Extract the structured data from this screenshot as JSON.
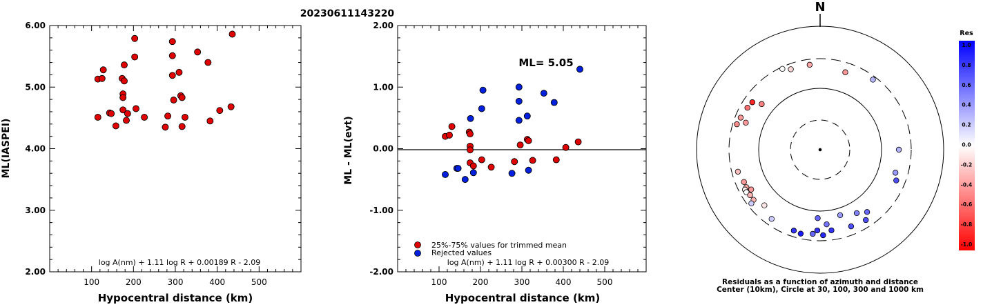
{
  "title": "20230611143220",
  "chart_data": [
    {
      "type": "scatter",
      "ylabel": "ML(IASPEI)",
      "xlabel": "Hypocentral distance (km)",
      "xlim": [
        0,
        600
      ],
      "ylim": [
        2.0,
        6.0
      ],
      "x_ticks": [
        "100",
        "200",
        "300",
        "400",
        "500"
      ],
      "y_ticks": [
        "2.00",
        "3.00",
        "4.00",
        "5.00",
        "6.00"
      ],
      "formula": "log A(nm) + 1.11 log R + 0.00189 R - 2.09",
      "marker_color": "#e00000",
      "points": [
        [
          115,
          5.13
        ],
        [
          125,
          5.14
        ],
        [
          128,
          5.28
        ],
        [
          115,
          4.51
        ],
        [
          143,
          4.58
        ],
        [
          147,
          4.57
        ],
        [
          158,
          4.37
        ],
        [
          173,
          5.14
        ],
        [
          175,
          4.89
        ],
        [
          175,
          4.83
        ],
        [
          175,
          4.63
        ],
        [
          178,
          5.1
        ],
        [
          178,
          5.36
        ],
        [
          183,
          4.46
        ],
        [
          186,
          4.57
        ],
        [
          203,
          5.79
        ],
        [
          203,
          5.49
        ],
        [
          206,
          4.65
        ],
        [
          226,
          4.51
        ],
        [
          276,
          4.35
        ],
        [
          282,
          4.53
        ],
        [
          293,
          5.74
        ],
        [
          293,
          5.51
        ],
        [
          293,
          5.19
        ],
        [
          296,
          4.79
        ],
        [
          309,
          5.24
        ],
        [
          313,
          4.86
        ],
        [
          316,
          4.83
        ],
        [
          316,
          4.36
        ],
        [
          323,
          4.51
        ],
        [
          353,
          5.57
        ],
        [
          378,
          5.4
        ],
        [
          383,
          4.45
        ],
        [
          406,
          4.62
        ],
        [
          433,
          4.68
        ],
        [
          436,
          5.86
        ]
      ]
    },
    {
      "type": "scatter",
      "ylabel": "ML - ML(evt)",
      "xlabel": "Hypocentral distance (km)",
      "xlim": [
        0,
        600
      ],
      "ylim": [
        -2.0,
        2.0
      ],
      "x_ticks": [
        "100",
        "200",
        "300",
        "400",
        "500"
      ],
      "y_ticks": [
        "-2.00",
        "-1.00",
        "0.00",
        "1.00",
        "2.00"
      ],
      "annotation": "ML= 5.05",
      "formula": "log A(nm) + 1.11 log R + 0.00300 R - 2.09",
      "legend": {
        "position": "bottom-left",
        "entries": [
          {
            "label": "25%-75% values for trimmed mean",
            "color": "#e00000"
          },
          {
            "label": "Rejected values",
            "color": "#0020e0"
          }
        ]
      },
      "series": [
        {
          "name": "25%-75% values for trimmed mean",
          "color": "#e00000",
          "points": [
            [
              115,
              0.2
            ],
            [
              125,
              0.22
            ],
            [
              131,
              0.36
            ],
            [
              173,
              0.27
            ],
            [
              175,
              0.24
            ],
            [
              175,
              0.04
            ],
            [
              175,
              -0.02
            ],
            [
              175,
              -0.23
            ],
            [
              183,
              -0.28
            ],
            [
              203,
              -0.18
            ],
            [
              226,
              -0.3
            ],
            [
              282,
              -0.21
            ],
            [
              296,
              0.06
            ],
            [
              313,
              0.15
            ],
            [
              316,
              0.13
            ],
            [
              326,
              -0.19
            ],
            [
              383,
              -0.18
            ],
            [
              406,
              0.02
            ],
            [
              436,
              0.11
            ]
          ]
        },
        {
          "name": "Rejected values",
          "color": "#0020e0",
          "points": [
            [
              115,
              -0.42
            ],
            [
              143,
              -0.32
            ],
            [
              146,
              -0.32
            ],
            [
              163,
              -0.5
            ],
            [
              176,
              0.49
            ],
            [
              183,
              -0.39
            ],
            [
              203,
              0.65
            ],
            [
              206,
              0.95
            ],
            [
              276,
              -0.4
            ],
            [
              293,
              1.0
            ],
            [
              293,
              0.77
            ],
            [
              293,
              0.46
            ],
            [
              313,
              0.53
            ],
            [
              316,
              -0.35
            ],
            [
              353,
              0.9
            ],
            [
              378,
              0.75
            ],
            [
              440,
              1.29
            ]
          ]
        }
      ]
    },
    {
      "type": "scatter",
      "subtype": "polar",
      "north_label": "N",
      "caption_lines": [
        "Residuals as a function of azimuth and distance",
        "Center (10km), Circle at 30, 100, 300 and 1000 km"
      ],
      "colorbar": {
        "title": "Res",
        "tick_labels": [
          "1.0",
          "0.8",
          "0.6",
          "0.4",
          "0.2",
          "0.0",
          "-0.2",
          "-0.4",
          "-0.6",
          "-0.8",
          "-1.0"
        ],
        "max_color": "#0000ff",
        "zero_color": "#ffffff",
        "min_color": "#ff0000"
      },
      "stations": [
        {
          "azimuth": 305,
          "distance": 220,
          "residual": -0.85
        },
        {
          "azimuth": 300,
          "distance": 230,
          "residual": -0.55
        },
        {
          "azimuth": 308,
          "distance": 160,
          "residual": -0.5
        },
        {
          "azimuth": 292,
          "distance": 245,
          "residual": -0.4
        },
        {
          "azimuth": 287,
          "distance": 258,
          "residual": -0.45
        },
        {
          "azimuth": 290,
          "distance": 192,
          "residual": -0.4
        },
        {
          "azimuth": 255,
          "distance": 240,
          "residual": -0.25
        },
        {
          "azimuth": 247,
          "distance": 220,
          "residual": -0.4
        },
        {
          "azimuth": 243,
          "distance": 220,
          "residual": -0.35
        },
        {
          "azimuth": 242,
          "distance": 240,
          "residual": -0.05
        },
        {
          "azimuth": 240,
          "distance": 240,
          "residual": 0.0
        },
        {
          "azimuth": 237,
          "distance": 226,
          "residual": -0.3
        },
        {
          "azimuth": 233,
          "distance": 225,
          "residual": -0.3
        },
        {
          "azimuth": 240,
          "distance": 196,
          "residual": -0.4
        },
        {
          "azimuth": 232,
          "distance": 260,
          "residual": 0.2
        },
        {
          "azimuth": 225,
          "distance": 190,
          "residual": -0.1
        },
        {
          "azimuth": 215,
          "distance": 235,
          "residual": 0.2
        },
        {
          "azimuth": 335,
          "distance": 280,
          "residual": 0.0
        },
        {
          "azimuth": 340,
          "distance": 245,
          "residual": -0.15
        },
        {
          "azimuth": 353,
          "distance": 245,
          "residual": -0.35
        },
        {
          "azimuth": 37,
          "distance": 265,
          "residual": 0.3
        },
        {
          "azimuth": 18,
          "distance": 210,
          "residual": -0.4
        },
        {
          "azimuth": 90,
          "distance": 190,
          "residual": 0.3
        },
        {
          "azimuth": 107,
          "distance": 190,
          "residual": 0.4
        },
        {
          "azimuth": 112,
          "distance": 215,
          "residual": 0.7
        },
        {
          "azimuth": 163,
          "distance": 130,
          "residual": 0.4
        },
        {
          "azimuth": 175,
          "distance": 165,
          "residual": 0.55
        },
        {
          "azimuth": 182,
          "distance": 130,
          "residual": 0.6
        },
        {
          "azimuth": 172,
          "distance": 210,
          "residual": 0.8
        },
        {
          "azimuth": 178,
          "distance": 245,
          "residual": 0.85
        },
        {
          "azimuth": 182,
          "distance": 205,
          "residual": 0.8
        },
        {
          "azimuth": 185,
          "distance": 235,
          "residual": 0.6
        },
        {
          "azimuth": 147,
          "distance": 230,
          "residual": 0.7
        },
        {
          "azimuth": 150,
          "distance": 155,
          "residual": 0.5
        },
        {
          "azimuth": 158,
          "distance": 220,
          "residual": 0.7
        },
        {
          "azimuth": 143,
          "distance": 185,
          "residual": 0.6
        },
        {
          "azimuth": 193,
          "distance": 250,
          "residual": 0.9
        },
        {
          "azimuth": 198,
          "distance": 240,
          "residual": 0.8
        }
      ]
    }
  ]
}
